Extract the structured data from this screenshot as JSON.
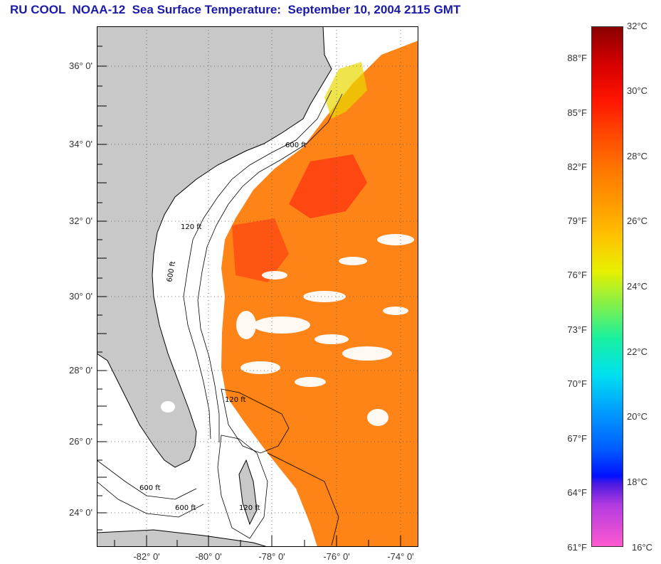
{
  "title": "RU COOL  NOAA-12  Sea Surface Temperature:  September 10, 2004 2115 GMT",
  "map": {
    "lat_ticks": [
      "36° 0'",
      "34° 0'",
      "32° 0'",
      "30° 0'",
      "28° 0'",
      "26° 0'",
      "24° 0'"
    ],
    "lon_ticks": [
      "-82° 0'",
      "-80° 0'",
      "-78° 0'",
      "-76° 0'",
      "-74° 0'"
    ],
    "contour_labels": [
      "600 ft",
      "120 ft",
      "600 ft",
      "120 ft",
      "600 ft",
      "600 ft",
      "120 ft"
    ],
    "colors": {
      "land": "#c8c8c8",
      "no_data": "#ffffff",
      "sst_warm": "#ff7a10",
      "sst_hot": "#ff3010",
      "sst_mid": "#ff9a20"
    }
  },
  "colorbar": {
    "fahrenheit": [
      "88°F",
      "85°F",
      "82°F",
      "79°F",
      "76°F",
      "73°F",
      "70°F",
      "67°F",
      "64°F",
      "61°F"
    ],
    "celsius": [
      "32°C",
      "30°C",
      "28°C",
      "26°C",
      "24°C",
      "22°C",
      "20°C",
      "18°C",
      "16°C"
    ],
    "range_c": [
      16,
      32
    ],
    "range_f": [
      61,
      89.6
    ]
  }
}
